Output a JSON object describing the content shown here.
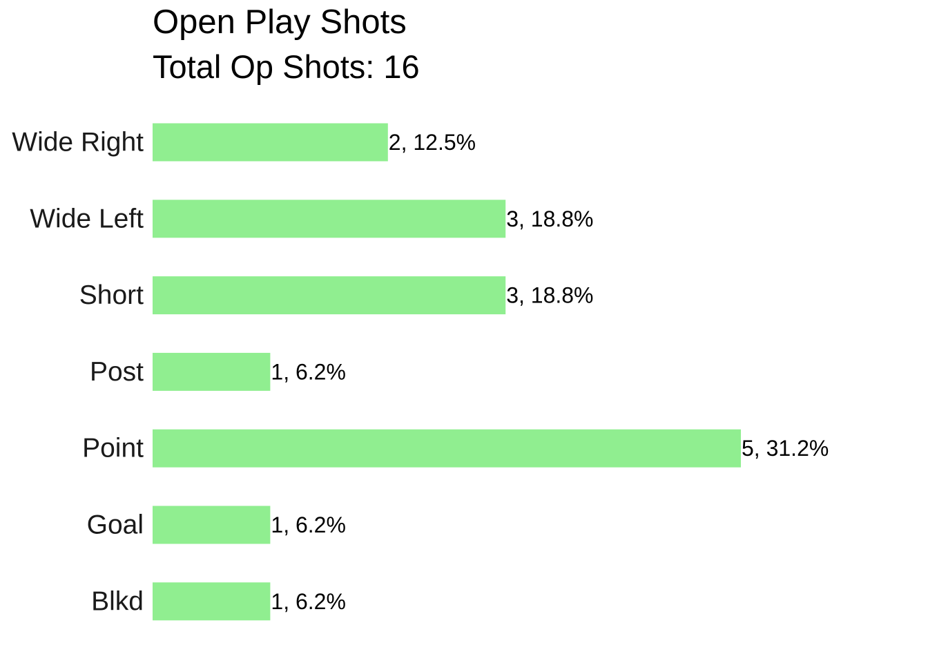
{
  "chart_data": {
    "type": "bar",
    "orientation": "horizontal",
    "title": "Open Play Shots",
    "subtitle": "Total Op Shots: 16",
    "xlabel": "",
    "ylabel": "",
    "grid": false,
    "xlim": [
      0,
      5
    ],
    "bar_color": "#90EE90",
    "categories": [
      "Wide Right",
      "Wide Left",
      "Short",
      "Post",
      "Point",
      "Goal",
      "Blkd"
    ],
    "values": [
      2,
      3,
      3,
      1,
      5,
      1,
      1
    ],
    "labels": [
      "2, 12.5%",
      "3, 18.8%",
      "3, 18.8%",
      "1, 6.2%",
      "5, 31.2%",
      "1, 6.2%",
      "1, 6.2%"
    ]
  }
}
